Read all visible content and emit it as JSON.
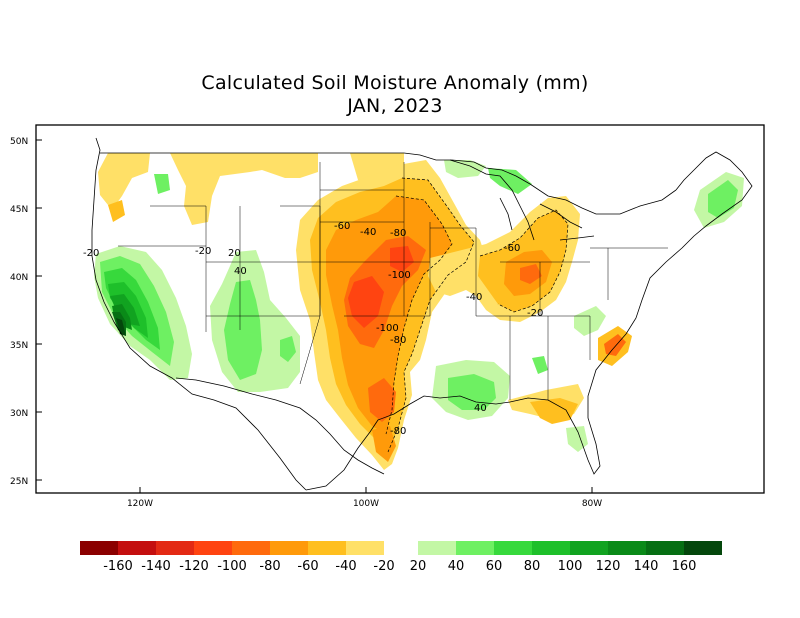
{
  "title": {
    "line1": "Calculated Soil Moisture Anomaly (mm)",
    "line2": "JAN, 2023"
  },
  "axes": {
    "lat_labels": [
      "50N",
      "45N",
      "40N",
      "35N",
      "30N",
      "25N"
    ],
    "lon_labels": [
      "120W",
      "100W",
      "80W"
    ]
  },
  "contour_labels": [
    "-20",
    "-20",
    "20",
    "40",
    "-60",
    "-40",
    "-80",
    "-60",
    "-100",
    "-40",
    "-20",
    "-100",
    "-80",
    "40",
    "-80"
  ],
  "colors": {
    "dry": [
      "#8b0000",
      "#c40f0f",
      "#e32a14",
      "#ff4411",
      "#ff6a0d",
      "#ff9a0a",
      "#ffbf1f",
      "#ffe067"
    ],
    "wet": [
      "#c3f7a5",
      "#6ef062",
      "#37d93c",
      "#1ec02a",
      "#11a320",
      "#0a8a18",
      "#066f13",
      "#04470c"
    ],
    "land_outline": "#000000"
  },
  "legend": {
    "labels": [
      "-160",
      "-140",
      "-120",
      "-100",
      "-80",
      "-60",
      "-40",
      "-20",
      "20",
      "40",
      "60",
      "80",
      "100",
      "120",
      "140",
      "160"
    ]
  }
}
